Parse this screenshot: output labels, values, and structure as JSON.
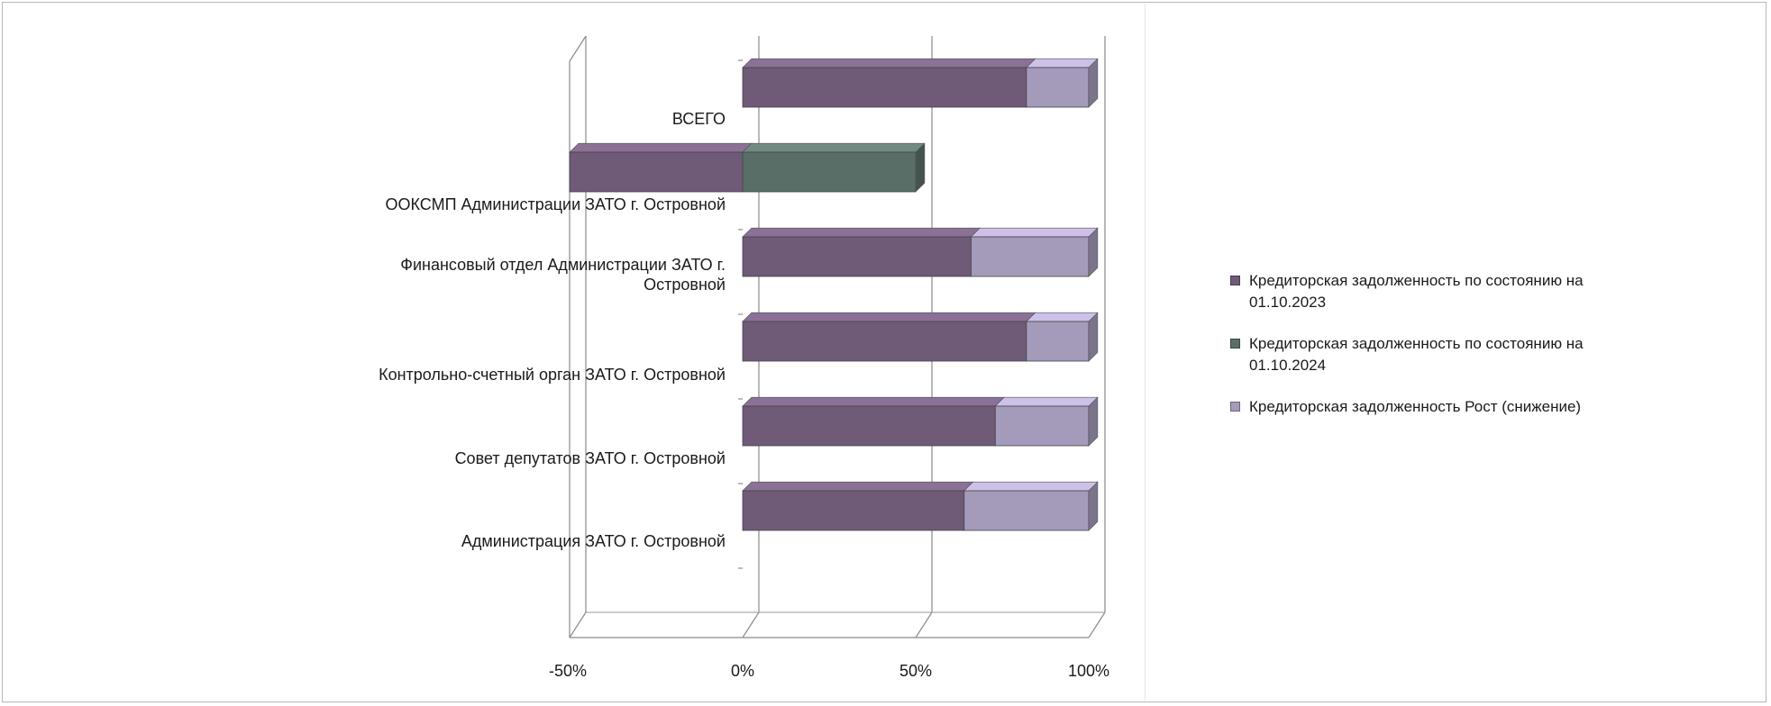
{
  "chart_data": {
    "type": "bar",
    "orientation": "horizontal",
    "stacking": "percent",
    "style": "3d",
    "categories": [
      "ВСЕГО",
      "ООКСМП Администрации ЗАТО г. Островной",
      "Финансовый отдел  Администрации  ЗАТО г. Островной",
      "Контрольно-счетный орган ЗАТО г. Островной",
      "Совет депутатов ЗАТО  г. Островной",
      "Администрация ЗАТО г. Островной"
    ],
    "series": [
      {
        "name": "Кредиторская задолженность по состоянию на  01.10.2023",
        "color": "#6f5a78",
        "values": [
          0.82,
          -0.5,
          0.66,
          0.82,
          0.73,
          0.64
        ]
      },
      {
        "name": "Кредиторская задолженность по состоянию на  01.10.2024",
        "color": "#5a6e68",
        "values": [
          0.0,
          0.5,
          0.0,
          0.0,
          0.0,
          0.0
        ]
      },
      {
        "name": "Кредиторская задолженность  Рост (снижение)",
        "color": "#a49aba",
        "values": [
          0.18,
          0.0,
          0.34,
          0.18,
          0.27,
          0.36
        ]
      }
    ],
    "x_ticks": [
      "-50%",
      "0%",
      "50%",
      "100%"
    ],
    "xlim": [
      -0.5,
      1.0
    ],
    "grid": true,
    "legend_position": "right"
  }
}
